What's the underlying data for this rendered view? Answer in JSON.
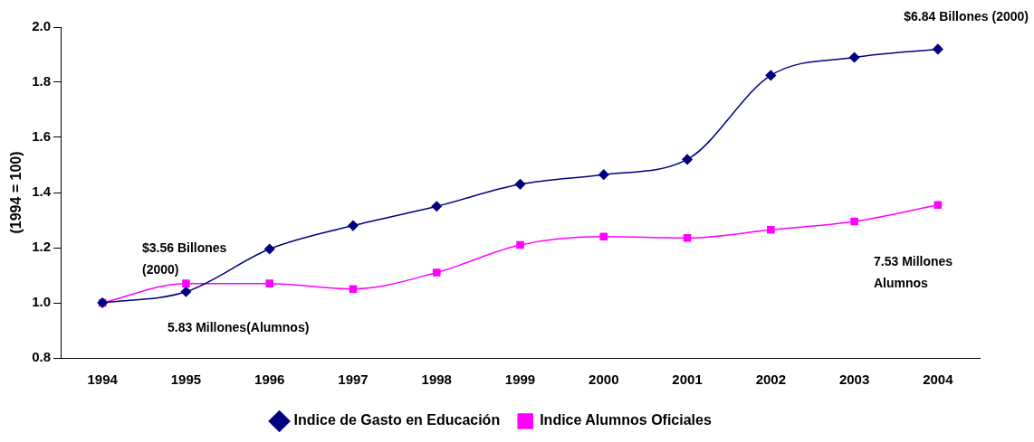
{
  "chart_data": {
    "type": "line",
    "ylabel": "(1994 = 100)",
    "categories": [
      "1994",
      "1995",
      "1996",
      "1997",
      "1998",
      "1999",
      "2000",
      "2001",
      "2002",
      "2003",
      "2004"
    ],
    "series": [
      {
        "name": "Indice de Gasto en Educación",
        "color": "#000080",
        "marker": "diamond",
        "values": [
          1.0,
          1.04,
          1.195,
          1.28,
          1.35,
          1.43,
          1.465,
          1.52,
          1.825,
          1.89,
          1.92
        ]
      },
      {
        "name": "Indice Alumnos Oficiales",
        "color": "#ff00ff",
        "marker": "square",
        "values": [
          1.0,
          1.07,
          1.07,
          1.05,
          1.11,
          1.21,
          1.24,
          1.235,
          1.265,
          1.295,
          1.355
        ]
      }
    ],
    "ylim": [
      0.8,
      2.0
    ],
    "yticks": [
      0.8,
      {
        "value": 1,
        "label": "1.0"
      },
      1.2,
      1.4,
      1.6,
      1.8,
      {
        "value": 2,
        "label": "2.0"
      }
    ],
    "legend": "bottom",
    "grid": false,
    "annotations": [
      "$3.56 Billones (2000)",
      "5.83 Millones(Alumnos)",
      "$6.84 Billones (2000)",
      "7.53 Millones Alumnos"
    ]
  }
}
